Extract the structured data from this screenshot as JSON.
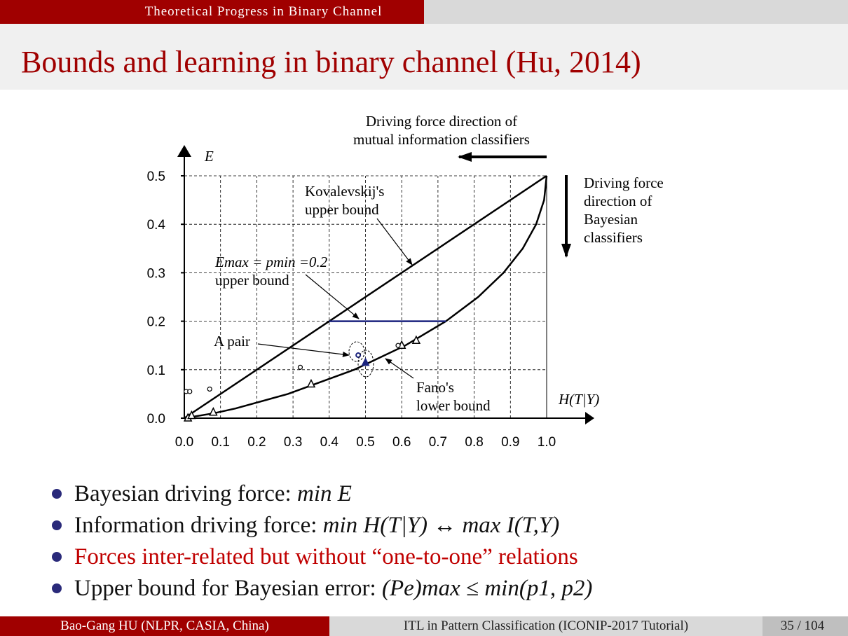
{
  "header": {
    "section": "Theoretical Progress in Binary Channel"
  },
  "title": "Bounds and learning in binary channel (Hu, 2014)",
  "figure": {
    "xlabel": "H(T|Y)",
    "ylabel": "E",
    "xlim": [
      0,
      1
    ],
    "ylim": [
      0,
      0.5
    ],
    "xticks": [
      {
        "value": 0,
        "label": "0.0"
      },
      0.1,
      0.2,
      0.3,
      0.4,
      0.5,
      0.6,
      0.7,
      0.8,
      0.9,
      {
        "value": 1,
        "label": "1.0"
      }
    ],
    "yticks": [
      {
        "value": 0,
        "label": "0.0"
      },
      0.1,
      0.2,
      0.3,
      0.4,
      0.5
    ],
    "grid": true,
    "upper_bound": {
      "x": [
        0,
        1
      ],
      "y": [
        0,
        0.5
      ],
      "color": "#000000"
    },
    "lower_bound": {
      "x": [
        0,
        0.081,
        0.141,
        0.286,
        0.469,
        0.61,
        0.722,
        0.811,
        0.881,
        0.934,
        0.971,
        0.993,
        1
      ],
      "y": [
        0,
        0.01,
        0.02,
        0.05,
        0.1,
        0.15,
        0.2,
        0.25,
        0.3,
        0.35,
        0.4,
        0.45,
        0.5
      ],
      "color": "#000000"
    },
    "emax_bound": {
      "x": [
        0.4,
        0.722
      ],
      "y": [
        0.2,
        0.2
      ],
      "color": "#1a237e"
    },
    "triangles": {
      "x": [
        0.01,
        0.02,
        0.08,
        0.35,
        0.6,
        0.64
      ],
      "y": [
        0,
        0.005,
        0.012,
        0.07,
        0.15,
        0.16
      ]
    },
    "circles": {
      "x": [
        0.005,
        0.015,
        0.07,
        0.32,
        0.59
      ],
      "y": [
        0.055,
        0.055,
        0.06,
        0.105,
        0.15
      ]
    },
    "pair": {
      "x": [
        0.48,
        0.5
      ],
      "y": [
        0.13,
        0.115
      ],
      "color": "#1a237e"
    },
    "annotations": {
      "mutual_info": [
        "Driving force direction of",
        "mutual information classifiers"
      ],
      "bayesian": [
        "Driving force",
        "direction of",
        "Bayesian",
        "classifiers"
      ],
      "kovalevskij": [
        "Kovalevskij's",
        "upper bound"
      ],
      "emax": [
        "Emax = pmin =0.2",
        "upper bound"
      ],
      "pair": [
        "A pair"
      ],
      "fano": [
        "Fano's",
        "lower bound"
      ]
    }
  },
  "bullets": [
    {
      "text": "Bayesian driving force: ",
      "math": "min  E"
    },
    {
      "text": "Information driving force: ",
      "math": "min  H(T|Y) ↔ max  I(T,Y)"
    },
    {
      "text": "Forces inter-related but without “one-to-one” relations",
      "math": ""
    },
    {
      "text": "Upper bound for Bayesian error: ",
      "math": "(Pe)max ≤ min(p1, p2)"
    }
  ],
  "footer": {
    "author": "Bao-Gang HU (NLPR, CASIA, China)",
    "talk": "ITL in Pattern Classification (ICONIP-2017 Tutorial)",
    "page": "35 / 104"
  }
}
